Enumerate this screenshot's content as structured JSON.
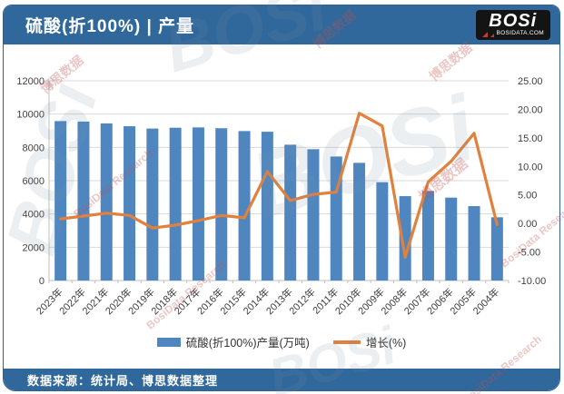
{
  "header": {
    "title": "硫酸(折100%) | 产量",
    "logo": {
      "name": "BOSi",
      "site": "BOSIDATA.COM"
    }
  },
  "footer": {
    "source": "数据来源：统计局、博思数据整理"
  },
  "watermarks": {
    "cn": "博思数据",
    "en": "BosiData Research",
    "logo": "BOSi"
  },
  "colors": {
    "header_bg": "#31689b",
    "footer_bg": "#31689b",
    "bar": "#4f86c0",
    "line": "#e0813d",
    "grid": "#d9d9d9",
    "axis": "#bfbfbf",
    "tick_text": "#3f3f3f"
  },
  "chart_data": {
    "type": "bar",
    "subtype": "combo-bar-line-dual-axis",
    "title": "硫酸(折100%) | 产量",
    "categories": [
      "2023年",
      "2022年",
      "2021年",
      "2020年",
      "2019年",
      "2018年",
      "2017年",
      "2016年",
      "2015年",
      "2014年",
      "2013年",
      "2012年",
      "2011年",
      "2010年",
      "2009年",
      "2008年",
      "2007年",
      "2006年",
      "2005年",
      "2004年"
    ],
    "series": [
      {
        "name": "硫酸(折100%)产量(万吨)",
        "type": "bar",
        "axis": "left",
        "color": "#4f86c0",
        "values": [
          9580,
          9550,
          9440,
          9270,
          9130,
          9180,
          9200,
          9150,
          8980,
          8940,
          8160,
          7890,
          7450,
          7070,
          5910,
          5070,
          5380,
          4980,
          4470,
          3800
        ]
      },
      {
        "name": "增长(%)",
        "type": "line",
        "axis": "right",
        "color": "#e0813d",
        "values": [
          0.8,
          1.3,
          1.8,
          1.4,
          -0.8,
          -0.3,
          0.5,
          1.4,
          1.0,
          9.1,
          4.0,
          5.1,
          5.5,
          19.3,
          17.1,
          -5.9,
          7.3,
          10.9,
          15.8,
          -0.2
        ]
      }
    ],
    "left_axis": {
      "min": 0,
      "max": 12000,
      "step": 2000,
      "labels": [
        "12000",
        "10000",
        "8000",
        "6000",
        "4000",
        "2000",
        "0"
      ]
    },
    "right_axis": {
      "min": -10,
      "max": 25,
      "step": 5,
      "labels": [
        "25.00",
        "20.00",
        "15.00",
        "10.00",
        "5.00",
        "0.00",
        "-5.00",
        "-10.00"
      ]
    },
    "grid": true,
    "legend_position": "bottom",
    "x_label_rotation": -45
  }
}
